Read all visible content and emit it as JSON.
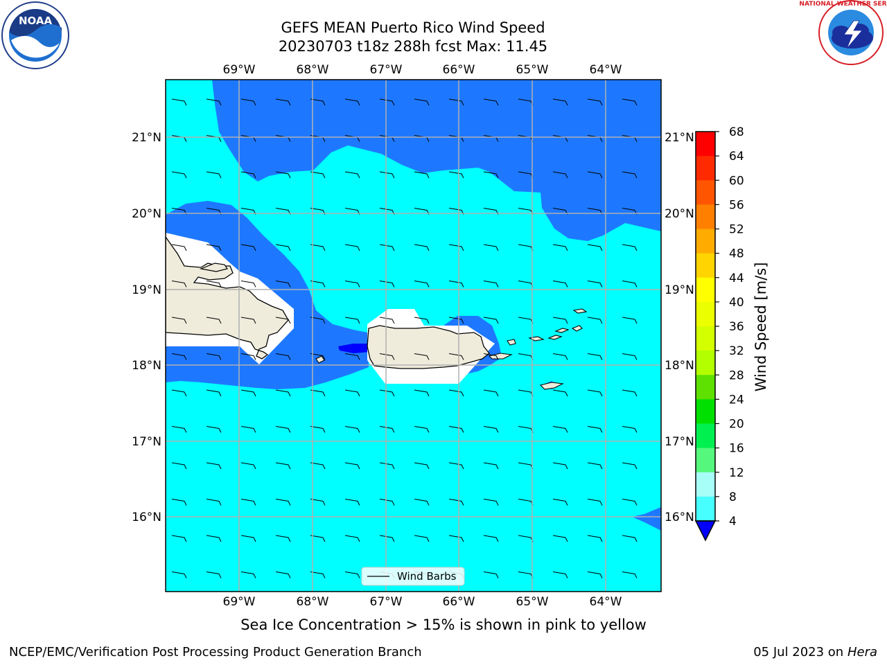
{
  "title": {
    "line1": "GEFS MEAN Puerto Rico Wind Speed",
    "line2": "20230703 t18z 288h fcst   Max: 11.45"
  },
  "map": {
    "lon_labels": [
      "69°W",
      "68°W",
      "67°W",
      "66°W",
      "65°W",
      "64°W"
    ],
    "lat_labels": [
      "21°N",
      "20°N",
      "19°N",
      "18°N",
      "17°N",
      "16°N"
    ],
    "legend_label": "Wind Barbs",
    "land_color": "#efecdc",
    "colors": {
      "lt4": "#0000ff",
      "4_8": "#1e78ff",
      "8_12": "#00ffff",
      "12_16": "#47ffff",
      "16_20": "#a7fdf7"
    }
  },
  "colorbar": {
    "label": "Wind Speed [m/s]",
    "ticks": [
      "68",
      "64",
      "60",
      "56",
      "52",
      "48",
      "44",
      "40",
      "36",
      "32",
      "28",
      "24",
      "20",
      "16",
      "12",
      "8",
      "4"
    ],
    "colors": [
      "#ff0000",
      "#ff2a00",
      "#ff5500",
      "#ff8000",
      "#ffab00",
      "#ffd400",
      "#ffff00",
      "#ecff00",
      "#d4ff00",
      "#b3ff00",
      "#5ee000",
      "#00e000",
      "#00f050",
      "#55f87c",
      "#a7fdf7",
      "#47ffff",
      "#00ffff",
      "#1e78ff"
    ],
    "extend_color": "#0000ff"
  },
  "subcaption": "Sea Ice Concentration > 15% is shown in pink to yellow",
  "footer": {
    "left": "NCEP/EMC/Verification Post Processing Product Generation Branch",
    "right_date": "05 Jul 2023 on ",
    "right_host": "Hera"
  },
  "logos": {
    "noaa_text": "NOAA",
    "nws_text": "NATIONAL WEATHER SERVICE"
  }
}
